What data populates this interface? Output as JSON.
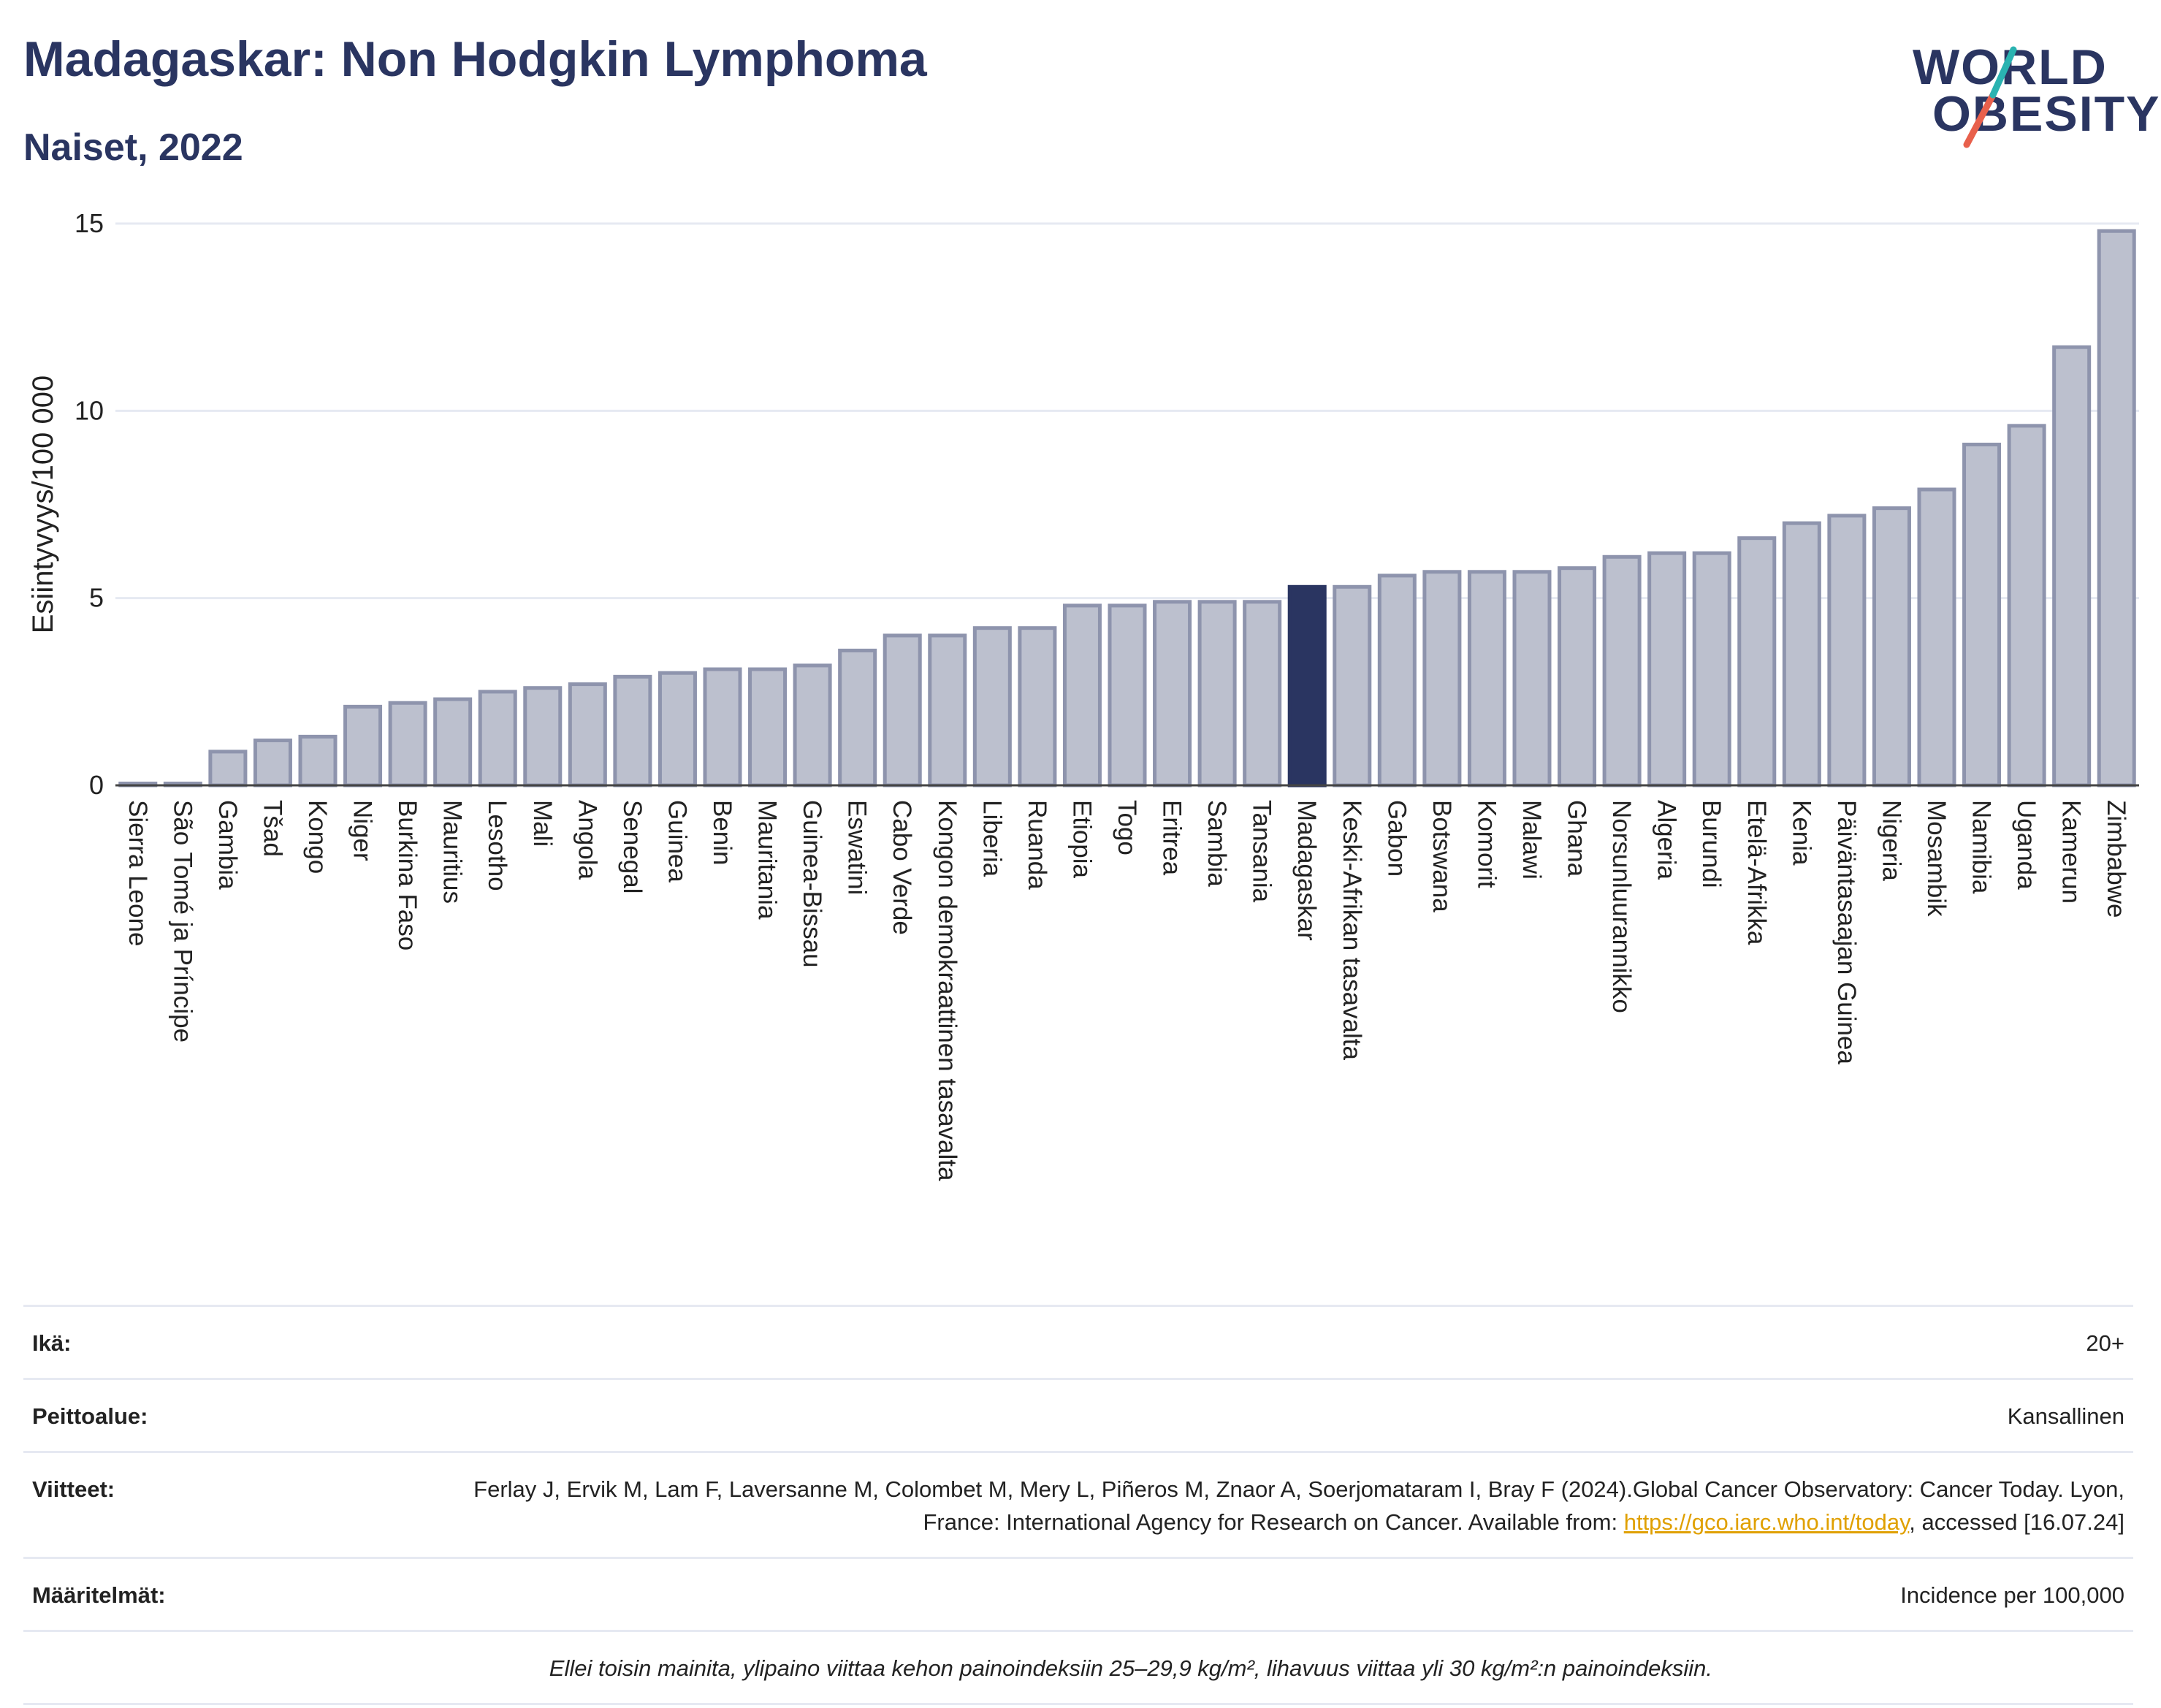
{
  "header": {
    "title": "Madagaskar: Non Hodgkin Lymphoma",
    "subtitle": "Naiset, 2022"
  },
  "logo": {
    "line1": "WORLD",
    "line2": "OBESITY",
    "colors": {
      "navy": "#2a3561",
      "teal": "#2ab3b1",
      "coral": "#e8604c"
    }
  },
  "chart_data": {
    "type": "bar",
    "ylabel": "Esiintyvyys/100 000",
    "xlabel": "",
    "ylim": [
      0,
      15
    ],
    "yticks": [
      0,
      5,
      10,
      15
    ],
    "grid": true,
    "highlight": "Madagaskar",
    "colors": {
      "bar": "#bcc0ce",
      "bar_edge": "#8e94ad",
      "highlight": "#2a3561",
      "grid": "#e6e9f2"
    },
    "categories": [
      "Sierra Leone",
      "São Tomé ja Príncipe",
      "Gambia",
      "Tšad",
      "Kongo",
      "Niger",
      "Burkina Faso",
      "Mauritius",
      "Lesotho",
      "Mali",
      "Angola",
      "Senegal",
      "Guinea",
      "Benin",
      "Mauritania",
      "Guinea-Bissau",
      "Eswatini",
      "Cabo Verde",
      "Kongon demokraattinen tasavalta",
      "Liberia",
      "Ruanda",
      "Etiopia",
      "Togo",
      "Eritrea",
      "Sambia",
      "Tansania",
      "Madagaskar",
      "Keski-Afrikan tasavalta",
      "Gabon",
      "Botswana",
      "Komorit",
      "Malawi",
      "Ghana",
      "Norsunluurannikko",
      "Algeria",
      "Burundi",
      "Etelä-Afrikka",
      "Kenia",
      "Päiväntasaajan Guinea",
      "Nigeria",
      "Mosambik",
      "Namibia",
      "Uganda",
      "Kamerun",
      "Zimbabwe"
    ],
    "values": [
      0.05,
      0.05,
      0.9,
      1.2,
      1.3,
      2.1,
      2.2,
      2.3,
      2.5,
      2.6,
      2.7,
      2.9,
      3.0,
      3.1,
      3.1,
      3.2,
      3.6,
      4.0,
      4.0,
      4.2,
      4.2,
      4.8,
      4.8,
      4.9,
      4.9,
      4.9,
      5.3,
      5.3,
      5.6,
      5.7,
      5.7,
      5.7,
      5.8,
      6.1,
      6.2,
      6.2,
      6.6,
      7.0,
      7.2,
      7.4,
      7.9,
      9.1,
      9.6,
      11.7,
      14.8
    ]
  },
  "info": {
    "age": {
      "label": "Ikä:",
      "value": "20+"
    },
    "coverage": {
      "label": "Peittoalue:",
      "value": "Kansallinen"
    },
    "references": {
      "label": "Viitteet:",
      "text1": "Ferlay J, Ervik M, Lam F, Laversanne M, Colombet M, Mery L, Piñeros M, Znaor A, Soerjomataram I, Bray F (2024).Global Cancer Observatory: Cancer Today. Lyon, France: International Agency for Research on Cancer. Available from: ",
      "link": "https://gco.iarc.who.int/today",
      "text2": ", accessed [16.07.24]"
    },
    "definitions": {
      "label": "Määritelmät:",
      "value": "Incidence per 100,000"
    },
    "note": "Ellei toisin mainita, ylipaino viittaa kehon painoindeksiin 25–29,9 kg/m², lihavuus viittaa yli 30 kg/m²:n painoindeksiin."
  }
}
